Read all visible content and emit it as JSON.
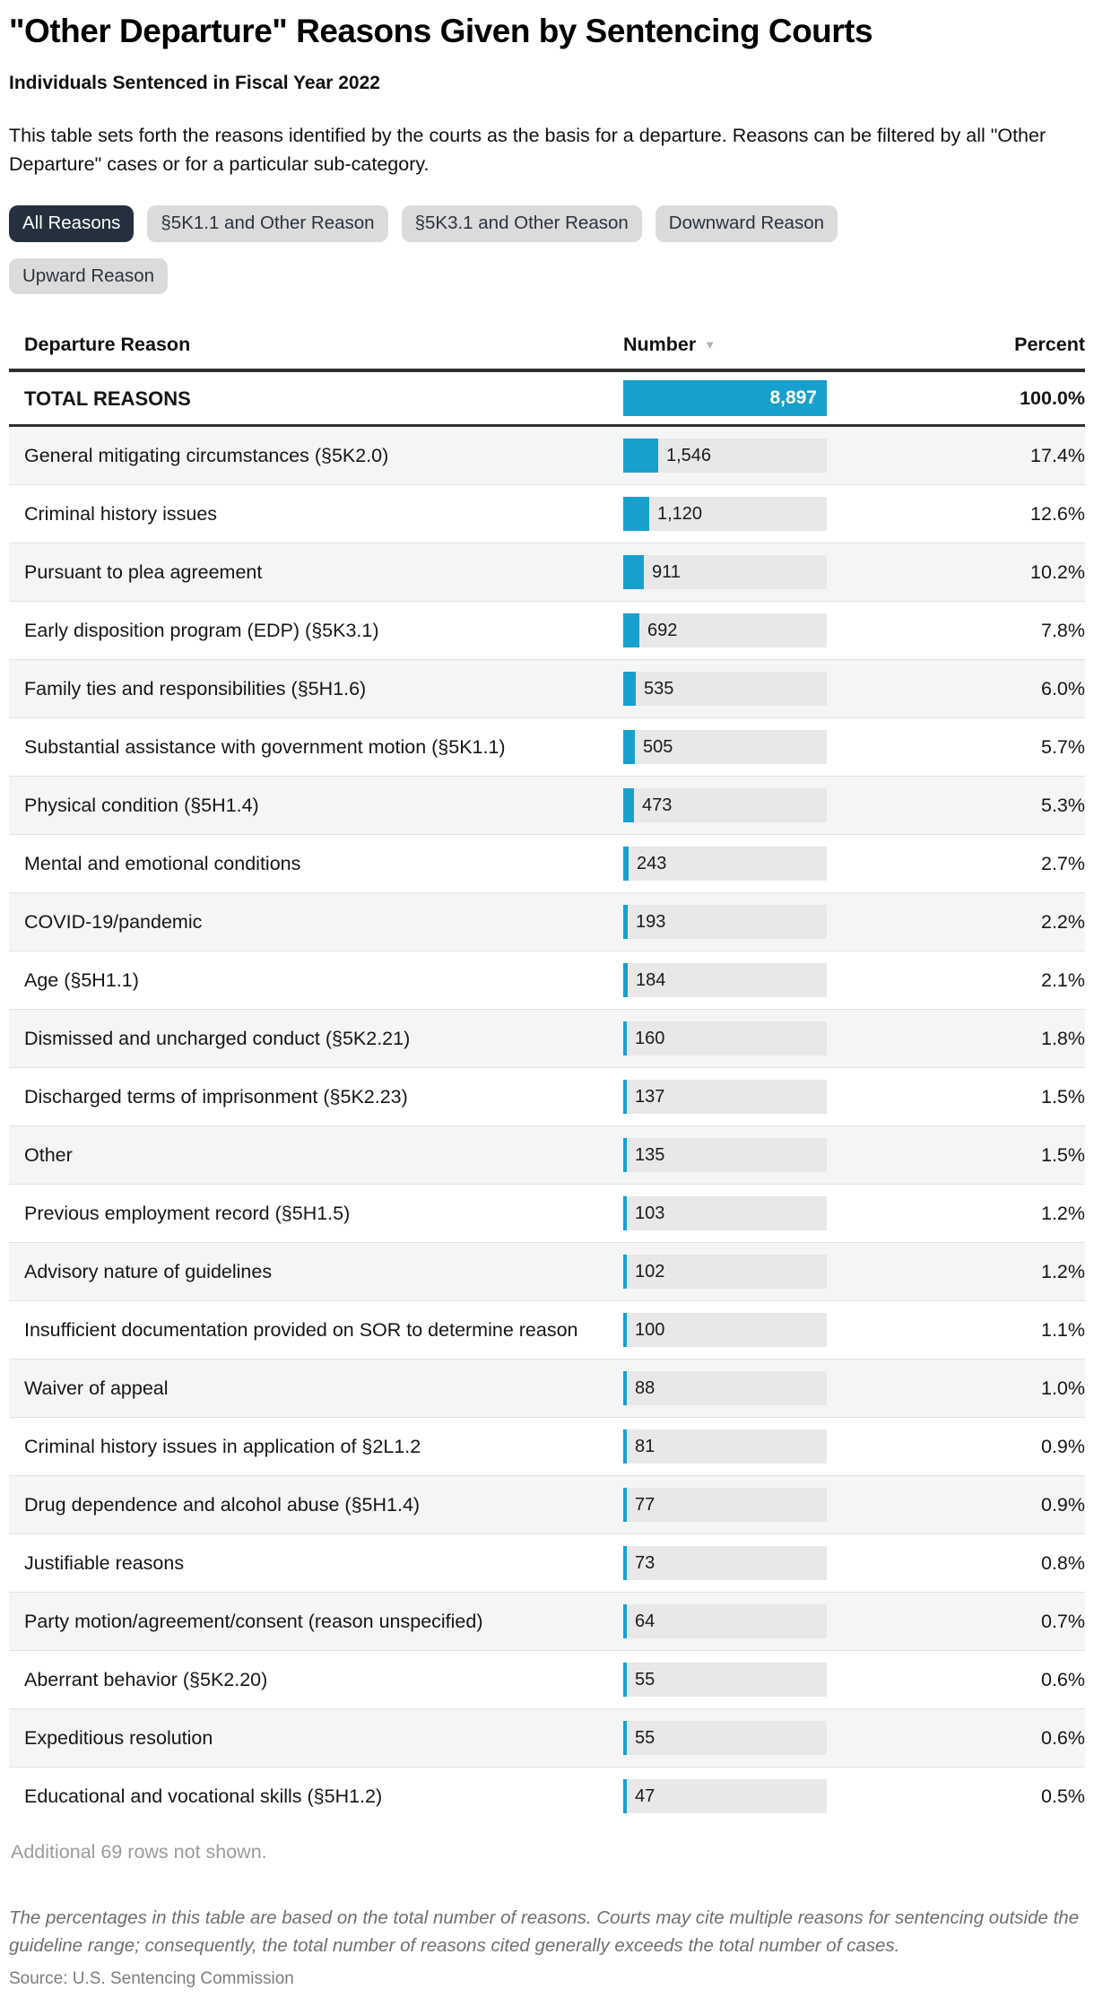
{
  "page": {
    "title": "\"Other Departure\" Reasons Given by Sentencing Courts",
    "subtitle": "Individuals Sentenced in Fiscal Year 2022",
    "description": "This table sets forth the reasons identified by the courts as the basis for a departure. Reasons can be filtered by all \"Other Departure\" cases or for a particular sub-category."
  },
  "filters": [
    {
      "label": "All Reasons",
      "selected": true
    },
    {
      "label": "§5K1.1 and Other Reason",
      "selected": false
    },
    {
      "label": "§5K3.1 and Other Reason",
      "selected": false
    },
    {
      "label": "Downward Reason",
      "selected": false
    },
    {
      "label": "Upward Reason",
      "selected": false
    }
  ],
  "colors": {
    "accent_blue": "#18A0CD",
    "bar_track": "#E8E8E8",
    "row_alt": "#F5F5F5",
    "rule_dark": "#2F2F2F",
    "pill_bg": "#DBDBDB",
    "pill_selected_bg": "#25303E",
    "muted_text": "#9B9B9B"
  },
  "footer": {
    "more_rows": "Additional 69 rows not shown.",
    "note": "The percentages in this table are based on the total number of reasons. Courts may cite multiple reasons for sentencing outside the guideline range; consequently, the total number of reasons cited generally exceeds the total number of cases.",
    "source": "Source: U.S. Sentencing Commission"
  },
  "chart_data": {
    "type": "table",
    "title": "\"Other Departure\" Reasons Given by Sentencing Courts",
    "subtitle": "Individuals Sentenced in Fiscal Year 2022",
    "columns": [
      "Departure Reason",
      "Number",
      "Percent"
    ],
    "sort": {
      "column": "Number",
      "direction": "desc",
      "icon": "down-triangle"
    },
    "bar_axis_max": 8897,
    "total": {
      "label": "TOTAL REASONS",
      "value": 8897,
      "number_label": "8,897",
      "percent": "100.0%"
    },
    "rows": [
      {
        "label": "General mitigating circumstances (§5K2.0)",
        "value": 1546,
        "number_label": "1,546",
        "percent": "17.4%"
      },
      {
        "label": "Criminal history issues",
        "value": 1120,
        "number_label": "1,120",
        "percent": "12.6%"
      },
      {
        "label": "Pursuant to plea agreement",
        "value": 911,
        "number_label": "911",
        "percent": "10.2%"
      },
      {
        "label": "Early disposition program (EDP) (§5K3.1)",
        "value": 692,
        "number_label": "692",
        "percent": "7.8%"
      },
      {
        "label": "Family ties and responsibilities (§5H1.6)",
        "value": 535,
        "number_label": "535",
        "percent": "6.0%"
      },
      {
        "label": "Substantial assistance with government motion (§5K1.1)",
        "value": 505,
        "number_label": "505",
        "percent": "5.7%"
      },
      {
        "label": "Physical condition (§5H1.4)",
        "value": 473,
        "number_label": "473",
        "percent": "5.3%"
      },
      {
        "label": "Mental and emotional conditions",
        "value": 243,
        "number_label": "243",
        "percent": "2.7%"
      },
      {
        "label": "COVID-19/pandemic",
        "value": 193,
        "number_label": "193",
        "percent": "2.2%"
      },
      {
        "label": "Age (§5H1.1)",
        "value": 184,
        "number_label": "184",
        "percent": "2.1%"
      },
      {
        "label": "Dismissed and uncharged conduct (§5K2.21)",
        "value": 160,
        "number_label": "160",
        "percent": "1.8%"
      },
      {
        "label": "Discharged terms of imprisonment (§5K2.23)",
        "value": 137,
        "number_label": "137",
        "percent": "1.5%"
      },
      {
        "label": "Other",
        "value": 135,
        "number_label": "135",
        "percent": "1.5%"
      },
      {
        "label": "Previous employment record (§5H1.5)",
        "value": 103,
        "number_label": "103",
        "percent": "1.2%"
      },
      {
        "label": "Advisory nature of guidelines",
        "value": 102,
        "number_label": "102",
        "percent": "1.2%"
      },
      {
        "label": "Insufficient documentation provided on SOR to determine reason",
        "value": 100,
        "number_label": "100",
        "percent": "1.1%"
      },
      {
        "label": "Waiver of appeal",
        "value": 88,
        "number_label": "88",
        "percent": "1.0%"
      },
      {
        "label": "Criminal history issues in application of §2L1.2",
        "value": 81,
        "number_label": "81",
        "percent": "0.9%"
      },
      {
        "label": "Drug dependence and alcohol abuse (§5H1.4)",
        "value": 77,
        "number_label": "77",
        "percent": "0.9%"
      },
      {
        "label": "Justifiable reasons",
        "value": 73,
        "number_label": "73",
        "percent": "0.8%"
      },
      {
        "label": "Party motion/agreement/consent (reason unspecified)",
        "value": 64,
        "number_label": "64",
        "percent": "0.7%"
      },
      {
        "label": "Aberrant behavior (§5K2.20)",
        "value": 55,
        "number_label": "55",
        "percent": "0.6%"
      },
      {
        "label": "Expeditious resolution",
        "value": 55,
        "number_label": "55",
        "percent": "0.6%"
      },
      {
        "label": "Educational and vocational skills (§5H1.2)",
        "value": 47,
        "number_label": "47",
        "percent": "0.5%"
      }
    ]
  }
}
